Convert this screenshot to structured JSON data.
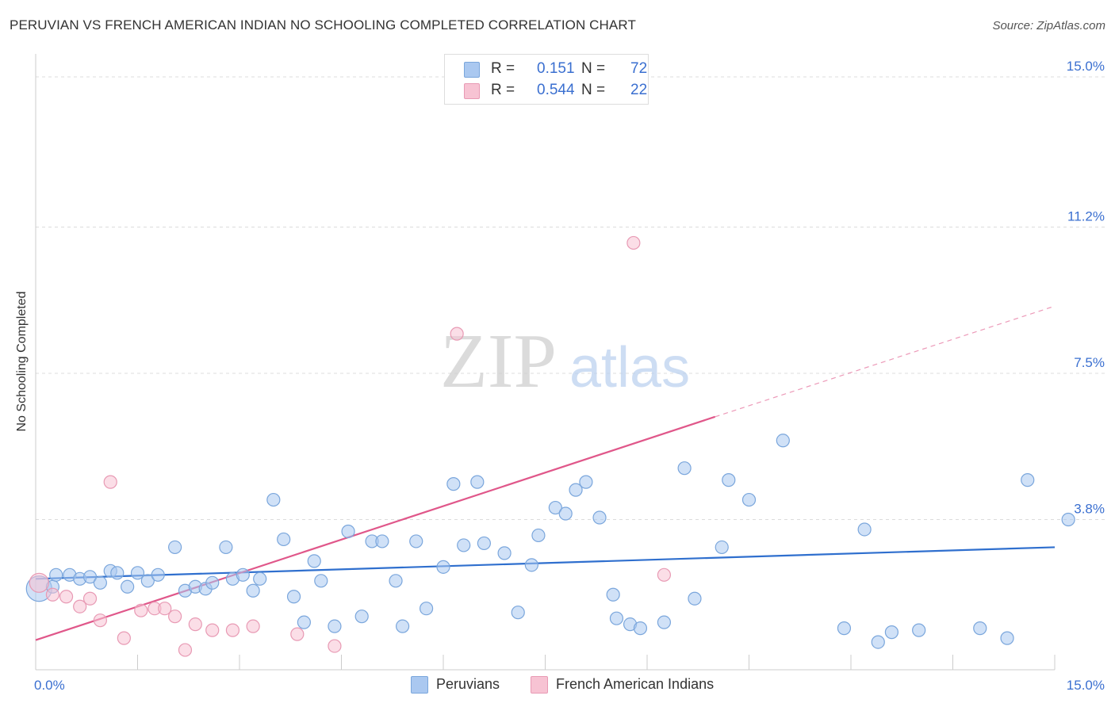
{
  "title": "PERUVIAN VS FRENCH AMERICAN INDIAN NO SCHOOLING COMPLETED CORRELATION CHART",
  "source": "Source: ZipAtlas.com",
  "watermark": {
    "zip": "ZIP",
    "atlas": "atlas"
  },
  "stats": [
    {
      "r_label": "R =",
      "r_value": "0.151",
      "n_label": "N =",
      "n_value": "72",
      "color": "#aac8f0",
      "border": "#7aa6dc"
    },
    {
      "r_label": "R =",
      "r_value": "0.544",
      "n_label": "N =",
      "n_value": "22",
      "color": "#f7c3d3",
      "border": "#e89ab4"
    }
  ],
  "legend": [
    {
      "label": "Peruvians",
      "color": "#aac8f0",
      "border": "#7aa6dc"
    },
    {
      "label": "French American Indians",
      "color": "#f7c3d3",
      "border": "#e89ab4"
    }
  ],
  "chart_data": {
    "type": "scatter",
    "title": "PERUVIAN VS FRENCH AMERICAN INDIAN NO SCHOOLING COMPLETED CORRELATION CHART",
    "xlabel": "",
    "ylabel": "No Schooling Completed",
    "xlim": [
      0,
      15
    ],
    "ylim": [
      0,
      15
    ],
    "x_tick_labels": [
      {
        "value": 0,
        "label": "0.0%"
      },
      {
        "value": 15,
        "label": "15.0%"
      }
    ],
    "y_tick_labels": [
      {
        "value": 3.8,
        "label": "3.8%"
      },
      {
        "value": 7.5,
        "label": "7.5%"
      },
      {
        "value": 11.2,
        "label": "11.2%"
      },
      {
        "value": 15.0,
        "label": "15.0%"
      }
    ],
    "grid": true,
    "series": [
      {
        "name": "Peruvians",
        "color": "#aac8f0",
        "stroke": "#7aa6dc",
        "line_color": "#2f6fce",
        "trend": {
          "x": [
            0,
            15
          ],
          "y": [
            2.3,
            3.1
          ]
        },
        "points": [
          [
            0.05,
            2.05
          ],
          [
            0.25,
            2.1
          ],
          [
            0.3,
            2.4
          ],
          [
            0.5,
            2.4
          ],
          [
            0.65,
            2.3
          ],
          [
            0.8,
            2.35
          ],
          [
            0.95,
            2.2
          ],
          [
            1.1,
            2.5
          ],
          [
            1.2,
            2.45
          ],
          [
            1.35,
            2.1
          ],
          [
            1.5,
            2.45
          ],
          [
            1.65,
            2.25
          ],
          [
            1.8,
            2.4
          ],
          [
            2.05,
            3.1
          ],
          [
            2.2,
            2.0
          ],
          [
            2.35,
            2.1
          ],
          [
            2.5,
            2.05
          ],
          [
            2.6,
            2.2
          ],
          [
            2.8,
            3.1
          ],
          [
            2.9,
            2.3
          ],
          [
            3.05,
            2.4
          ],
          [
            3.2,
            2.0
          ],
          [
            3.3,
            2.3
          ],
          [
            3.5,
            4.3
          ],
          [
            3.65,
            3.3
          ],
          [
            3.8,
            1.85
          ],
          [
            3.95,
            1.2
          ],
          [
            4.1,
            2.75
          ],
          [
            4.2,
            2.25
          ],
          [
            4.4,
            1.1
          ],
          [
            4.6,
            3.5
          ],
          [
            4.8,
            1.35
          ],
          [
            4.95,
            3.25
          ],
          [
            5.1,
            3.25
          ],
          [
            5.3,
            2.25
          ],
          [
            5.4,
            1.1
          ],
          [
            5.6,
            3.25
          ],
          [
            5.75,
            1.55
          ],
          [
            6.0,
            2.6
          ],
          [
            6.15,
            4.7
          ],
          [
            6.3,
            3.15
          ],
          [
            6.5,
            4.75
          ],
          [
            6.6,
            3.2
          ],
          [
            6.9,
            2.95
          ],
          [
            7.1,
            1.45
          ],
          [
            7.3,
            2.65
          ],
          [
            7.4,
            3.4
          ],
          [
            7.65,
            4.1
          ],
          [
            7.8,
            3.95
          ],
          [
            7.95,
            4.55
          ],
          [
            8.1,
            4.75
          ],
          [
            8.3,
            3.85
          ],
          [
            8.5,
            1.9
          ],
          [
            8.55,
            1.3
          ],
          [
            8.75,
            1.15
          ],
          [
            8.9,
            1.05
          ],
          [
            9.25,
            1.2
          ],
          [
            9.55,
            5.1
          ],
          [
            9.7,
            1.8
          ],
          [
            10.1,
            3.1
          ],
          [
            10.2,
            4.8
          ],
          [
            10.5,
            4.3
          ],
          [
            11.0,
            5.8
          ],
          [
            11.9,
            1.05
          ],
          [
            12.2,
            3.55
          ],
          [
            12.4,
            0.7
          ],
          [
            12.6,
            0.95
          ],
          [
            13.0,
            1.0
          ],
          [
            13.9,
            1.05
          ],
          [
            14.3,
            0.8
          ],
          [
            14.6,
            4.8
          ],
          [
            15.2,
            3.8
          ]
        ]
      },
      {
        "name": "French American Indians",
        "color": "#f7c3d3",
        "stroke": "#e89ab4",
        "line_color": "#e0578a",
        "trend": {
          "x": [
            0,
            10.0
          ],
          "y": [
            0.75,
            6.4
          ]
        },
        "trend_ext": {
          "x": [
            10.0,
            15
          ],
          "y": [
            6.4,
            9.2
          ]
        },
        "points": [
          [
            0.05,
            2.2
          ],
          [
            0.25,
            1.9
          ],
          [
            0.45,
            1.85
          ],
          [
            0.65,
            1.6
          ],
          [
            0.8,
            1.8
          ],
          [
            0.95,
            1.25
          ],
          [
            1.1,
            4.75
          ],
          [
            1.3,
            0.8
          ],
          [
            1.55,
            1.5
          ],
          [
            1.75,
            1.55
          ],
          [
            1.9,
            1.55
          ],
          [
            2.05,
            1.35
          ],
          [
            2.2,
            0.5
          ],
          [
            2.35,
            1.15
          ],
          [
            2.6,
            1.0
          ],
          [
            2.9,
            1.0
          ],
          [
            3.2,
            1.1
          ],
          [
            3.85,
            0.9
          ],
          [
            4.4,
            0.6
          ],
          [
            6.2,
            8.5
          ],
          [
            8.8,
            10.8
          ],
          [
            9.25,
            2.4
          ]
        ]
      }
    ]
  }
}
